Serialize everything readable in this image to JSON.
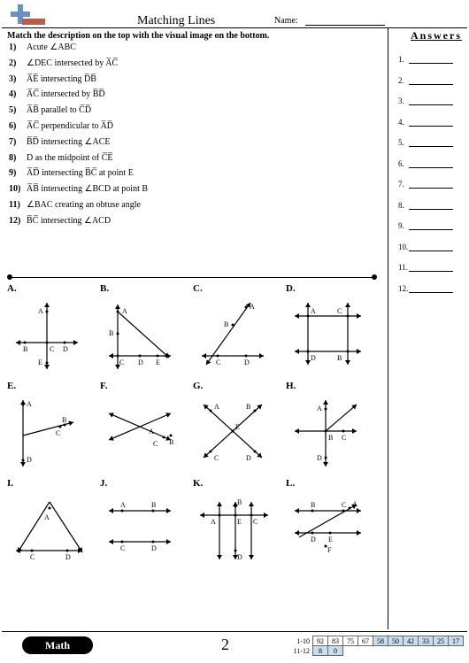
{
  "title": "Matching Lines",
  "nameLabel": "Name:",
  "instruction": "Match the description on the top with the visual image on the bottom.",
  "answersHeader": "Answers",
  "questions": [
    {
      "n": "1)",
      "text": "Acute ∠ABC"
    },
    {
      "n": "2)",
      "text": "∠DEC intersected by A̅C̅"
    },
    {
      "n": "3)",
      "text": "A̅E̅ intersecting D̅B̅"
    },
    {
      "n": "4)",
      "text": "A̅C̅ intersected by B̅D̅"
    },
    {
      "n": "5)",
      "text": "A̅B̅ parallel to C̅D̅"
    },
    {
      "n": "6)",
      "text": "A̅C̅ perpendicular to A̅D̅"
    },
    {
      "n": "7)",
      "text": "B̅D̅ intersecting ∠ACE"
    },
    {
      "n": "8)",
      "text": "D as the midpoint of C̅E̅"
    },
    {
      "n": "9)",
      "text": "A̅D̅ intersecting B̅C̅ at point E"
    },
    {
      "n": "10)",
      "text": "A̅B̅ intersecting ∠BCD at point B"
    },
    {
      "n": "11)",
      "text": "∠BAC creating an obtuse angle"
    },
    {
      "n": "12)",
      "text": "B̅C̅ intersecting ∠ACD"
    }
  ],
  "answerCount": 12,
  "diagramLabels": [
    "A.",
    "B.",
    "C.",
    "D.",
    "E.",
    "F.",
    "G.",
    "H.",
    "I.",
    "J.",
    "K.",
    "L."
  ],
  "footer": {
    "mathLabel": "Math",
    "pageNum": "2",
    "scoreRows": [
      {
        "label": "1-10",
        "vals": [
          "92",
          "83",
          "75",
          "67",
          "58",
          "50",
          "42",
          "33",
          "25",
          "17"
        ]
      },
      {
        "label": "11-12",
        "vals": [
          "8",
          "0",
          "",
          "",
          "",
          "",
          "",
          "",
          "",
          ""
        ]
      }
    ],
    "scoreColors": {
      "hi": "#c8ddf0",
      "lo": "#c8ddf0"
    }
  }
}
